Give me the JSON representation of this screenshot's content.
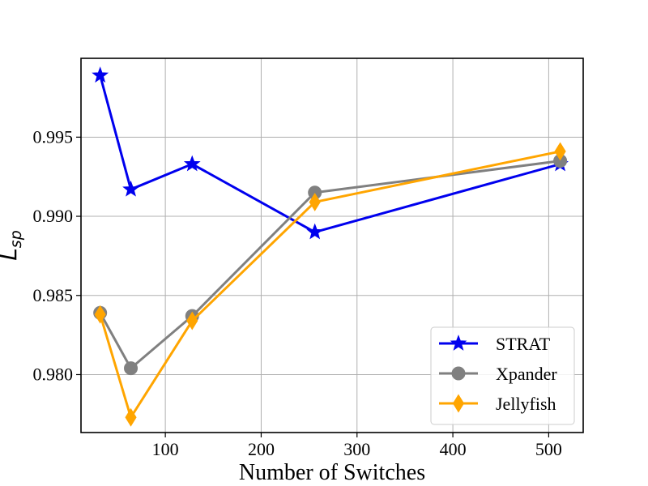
{
  "chart_data": {
    "type": "line",
    "title": "",
    "xlabel": "Number of Switches",
    "ylabel": {
      "base": "L",
      "subscript": "sp"
    },
    "xlim": [
      12,
      536
    ],
    "ylim": [
      0.97634,
      0.99998
    ],
    "xticks": [
      100,
      200,
      300,
      400,
      500
    ],
    "yticks": [
      0.98,
      0.985,
      0.99,
      0.995
    ],
    "ytick_labels": [
      "0.980",
      "0.985",
      "0.990",
      "0.995"
    ],
    "grid": true,
    "legend_position": "bottom-right",
    "x": [
      32,
      64,
      128,
      256,
      512
    ],
    "series": [
      {
        "name": "STRAT",
        "color": "#0000ee",
        "marker": "star",
        "values": [
          0.9989,
          0.9917,
          0.9933,
          0.989,
          0.9933
        ]
      },
      {
        "name": "Xpander",
        "color": "#808080",
        "marker": "circle",
        "values": [
          0.9839,
          0.9804,
          0.9837,
          0.9915,
          0.9935
        ]
      },
      {
        "name": "Jellyfish",
        "color": "#ffa500",
        "marker": "diamond",
        "values": [
          0.9838,
          0.9773,
          0.9834,
          0.9909,
          0.9941
        ]
      }
    ]
  }
}
